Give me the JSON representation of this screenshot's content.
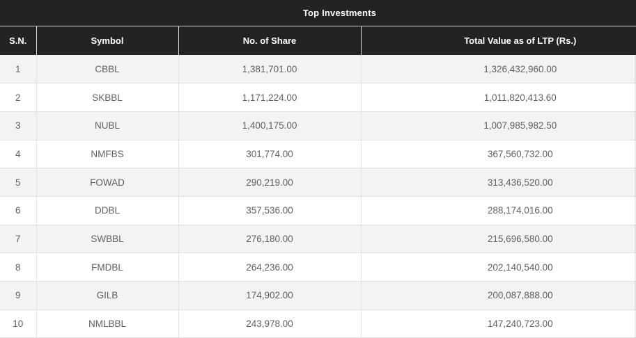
{
  "table": {
    "title": "Top Investments",
    "columns": [
      "S.N.",
      "Symbol",
      "No. of Share",
      "Total Value as of LTP (Rs.)"
    ],
    "rows": [
      {
        "sn": "1",
        "symbol": "CBBL",
        "shares": "1,381,701.00",
        "value": "1,326,432,960.00"
      },
      {
        "sn": "2",
        "symbol": "SKBBL",
        "shares": "1,171,224.00",
        "value": "1,011,820,413.60"
      },
      {
        "sn": "3",
        "symbol": "NUBL",
        "shares": "1,400,175.00",
        "value": "1,007,985,982.50"
      },
      {
        "sn": "4",
        "symbol": "NMFBS",
        "shares": "301,774.00",
        "value": "367,560,732.00"
      },
      {
        "sn": "5",
        "symbol": "FOWAD",
        "shares": "290,219.00",
        "value": "313,436,520.00"
      },
      {
        "sn": "6",
        "symbol": "DDBL",
        "shares": "357,536.00",
        "value": "288,174,016.00"
      },
      {
        "sn": "7",
        "symbol": "SWBBL",
        "shares": "276,180.00",
        "value": "215,696,580.00"
      },
      {
        "sn": "8",
        "symbol": "FMDBL",
        "shares": "264,236.00",
        "value": "202,140,540.00"
      },
      {
        "sn": "9",
        "symbol": "GILB",
        "shares": "174,902.00",
        "value": "200,087,888.00"
      },
      {
        "sn": "10",
        "symbol": "NMLBBL",
        "shares": "243,978.00",
        "value": "147,240,723.00"
      }
    ]
  },
  "colors": {
    "header_bg": "#232323",
    "header_text": "#ffffff",
    "row_alt_bg": "#f3f3f3",
    "row_bg": "#ffffff",
    "cell_text": "#606060",
    "border": "#e2e2e2"
  },
  "chart_data": {
    "type": "table",
    "title": "Top Investments",
    "columns": [
      "S.N.",
      "Symbol",
      "No. of Share",
      "Total Value as of LTP (Rs.)"
    ],
    "rows": [
      [
        1,
        "CBBL",
        1381701.0,
        1326432960.0
      ],
      [
        2,
        "SKBBL",
        1171224.0,
        1011820413.6
      ],
      [
        3,
        "NUBL",
        1400175.0,
        1007985982.5
      ],
      [
        4,
        "NMFBS",
        301774.0,
        367560732.0
      ],
      [
        5,
        "FOWAD",
        290219.0,
        313436520.0
      ],
      [
        6,
        "DDBL",
        357536.0,
        288174016.0
      ],
      [
        7,
        "SWBBL",
        276180.0,
        215696580.0
      ],
      [
        8,
        "FMDBL",
        264236.0,
        202140540.0
      ],
      [
        9,
        "GILB",
        174902.0,
        200087888.0
      ],
      [
        10,
        "NMLBBL",
        243978.0,
        147240723.0
      ]
    ]
  }
}
